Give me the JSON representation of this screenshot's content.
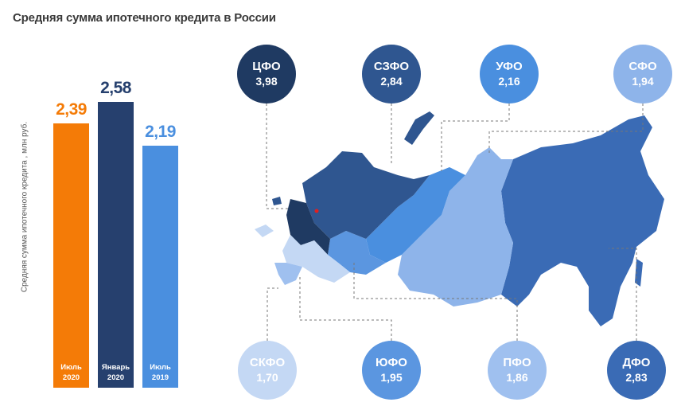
{
  "title": "Средняя сумма ипотечного кредита в России",
  "chart_data": {
    "type": "bar",
    "ylabel": "Средняя сумма ипотечного кредита , млн руб.",
    "ylim": [
      0,
      2.8
    ],
    "categories": [
      "Июль\n2020",
      "Январь\n2020",
      "Июль\n2019"
    ],
    "values": [
      2.39,
      2.58,
      2.19
    ],
    "value_labels": [
      "2,39",
      "2,58",
      "2,19"
    ],
    "colors": [
      "#f47b07",
      "#26406e",
      "#4a8fdf"
    ]
  },
  "districts": [
    {
      "name": "ЦФО",
      "value": "3,98",
      "color": "#1f3a62"
    },
    {
      "name": "СЗФО",
      "value": "2,84",
      "color": "#2f5690"
    },
    {
      "name": "УФО",
      "value": "2,16",
      "color": "#4a8fdf"
    },
    {
      "name": "СФО",
      "value": "1,94",
      "color": "#8eb4ea"
    },
    {
      "name": "СКФО",
      "value": "1,70",
      "color": "#c4d8f4"
    },
    {
      "name": "ЮФО",
      "value": "1,95",
      "color": "#5b96e0"
    },
    {
      "name": "ПФО",
      "value": "1,86",
      "color": "#9fc0ef"
    },
    {
      "name": "ДФО",
      "value": "2,83",
      "color": "#3a6bb5"
    }
  ]
}
